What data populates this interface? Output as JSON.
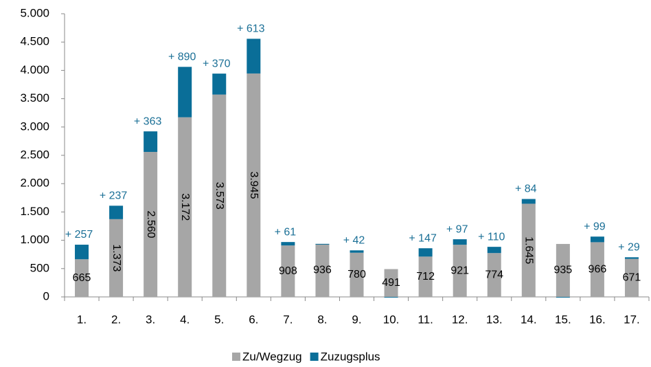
{
  "chart_data": {
    "type": "stacked_bar",
    "categories": [
      "1.",
      "2.",
      "3.",
      "4.",
      "5.",
      "6.",
      "7.",
      "8.",
      "9.",
      "10.",
      "11.",
      "12.",
      "13.",
      "14.",
      "15.",
      "16.",
      "17."
    ],
    "series": [
      {
        "name": "Zu/Wegzug",
        "color": "#a6a6a6",
        "values": [
          665,
          1373,
          2560,
          3172,
          3573,
          3945,
          908,
          936,
          780,
          491,
          712,
          921,
          774,
          1645,
          935,
          966,
          671
        ],
        "value_labels": [
          "665",
          "1.373",
          "2.560",
          "3.172",
          "3.573",
          "3.945",
          "908",
          "936",
          "780",
          "491",
          "712",
          "921",
          "774",
          "1.645",
          "935",
          "966",
          "671"
        ]
      },
      {
        "name": "Zuzugsplus",
        "color": "#0a6e98",
        "values": [
          257,
          237,
          363,
          890,
          370,
          613,
          61,
          0,
          42,
          -10,
          147,
          97,
          110,
          84,
          -10,
          99,
          29
        ],
        "value_labels": [
          "+ 257",
          "+ 237",
          "+ 363",
          "+ 890",
          "+ 370",
          "+ 613",
          "+ 61",
          null,
          "+ 42",
          null,
          "+ 147",
          "+ 97",
          "+ 110",
          "+ 84",
          null,
          "+ 99",
          "+ 29"
        ]
      }
    ],
    "ylim": [
      0,
      5000
    ],
    "yticks": [
      0,
      500,
      {
        "value": 1000,
        "label": "1.000"
      },
      {
        "value": 1500,
        "label": "1.500"
      },
      {
        "value": 2000,
        "label": "2.000"
      },
      {
        "value": 2500,
        "label": "2.500"
      },
      {
        "value": 3000,
        "label": "3.000"
      },
      {
        "value": 3500,
        "label": "3.500"
      },
      {
        "value": 4000,
        "label": "4.000"
      },
      {
        "value": 4500,
        "label": "4.500"
      },
      {
        "value": 5000,
        "label": "5.000"
      }
    ],
    "grid": false,
    "legend": "bottom"
  }
}
